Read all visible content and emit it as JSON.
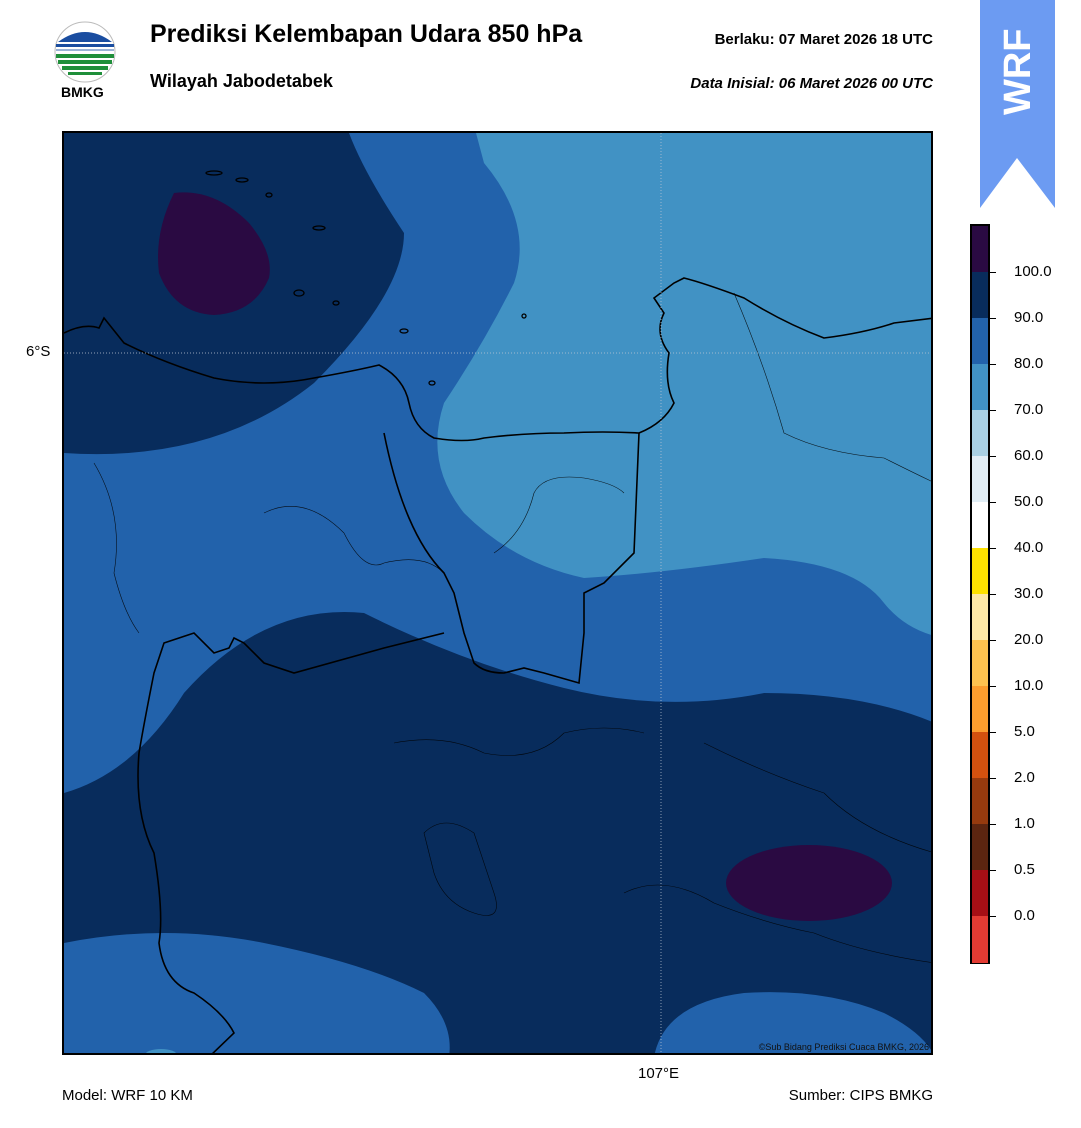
{
  "header": {
    "title": "Prediksi Kelembapan Udara 850 hPa",
    "subtitle": "Wilayah Jabodetabek",
    "valid_label": "Berlaku:  07 Maret 2026 18 UTC",
    "init_label": "Data Inisial:  06 Maret 2026 00 UTC",
    "logo_text": "BMKG",
    "banner_text": "WRF"
  },
  "map": {
    "lat_label": "6°S",
    "lon_label": "107°E",
    "copyright": "©Sub Bidang Prediksi Cuaca BMKG, 2026"
  },
  "footer": {
    "model": "Model: WRF 10 KM",
    "source": "Sumber: CIPS BMKG"
  },
  "colorbar": {
    "labels": [
      "100.0",
      "90.0",
      "80.0",
      "70.0",
      "60.0",
      "50.0",
      "40.0",
      "30.0",
      "20.0",
      "10.0",
      "5.0",
      "2.0",
      "1.0",
      "0.5",
      "0.0"
    ],
    "colors_top_to_bottom": [
      "#2a0a42",
      "#082c5c",
      "#2262ab",
      "#4192c4",
      "#a8d0e4",
      "#e1eef6",
      "#ffffff",
      "#fde100",
      "#fde8a6",
      "#fdc24f",
      "#fb9d2e",
      "#d3510f",
      "#963a0e",
      "#5c2510",
      "#a50f15",
      "#e23b33"
    ]
  }
}
